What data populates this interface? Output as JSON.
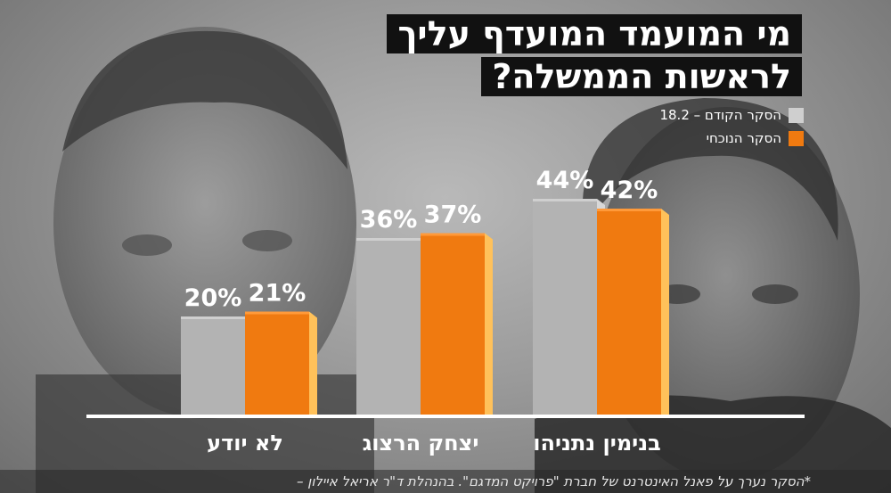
{
  "title": {
    "line1": "מי המועמד המועדף עליך",
    "line2": "לראשות הממשלה?"
  },
  "legend": {
    "previous": {
      "label": "הסקר הקודם – 18.2",
      "color": "#cfcfcf"
    },
    "current": {
      "label": "הסקר הנוכחי",
      "color": "#f07a10"
    }
  },
  "chart_data": {
    "type": "bar",
    "categories": [
      "לא יודע",
      "יצחק הרצוג",
      "בנימין נתניהו"
    ],
    "series": [
      {
        "name": "הסקר הקודם – 18.2",
        "values": [
          20,
          36,
          44
        ]
      },
      {
        "name": "הסקר הנוכחי",
        "values": [
          21,
          37,
          42
        ]
      }
    ],
    "value_labels": [
      [
        "20%",
        "36%",
        "44%"
      ],
      [
        "21%",
        "37%",
        "42%"
      ]
    ],
    "ylim": [
      0,
      50
    ]
  },
  "footnote": "*הסקר נערך על פאנל האינטרנט של חברת \"פרויקט המדגם\". בהנהלת ד\"ר אריאל איילון –",
  "colors": {
    "previous_bar": "#b3b3b3",
    "current_bar": "#f07a10",
    "current_side": "#ffc15a",
    "baseline": "#ffffff"
  }
}
